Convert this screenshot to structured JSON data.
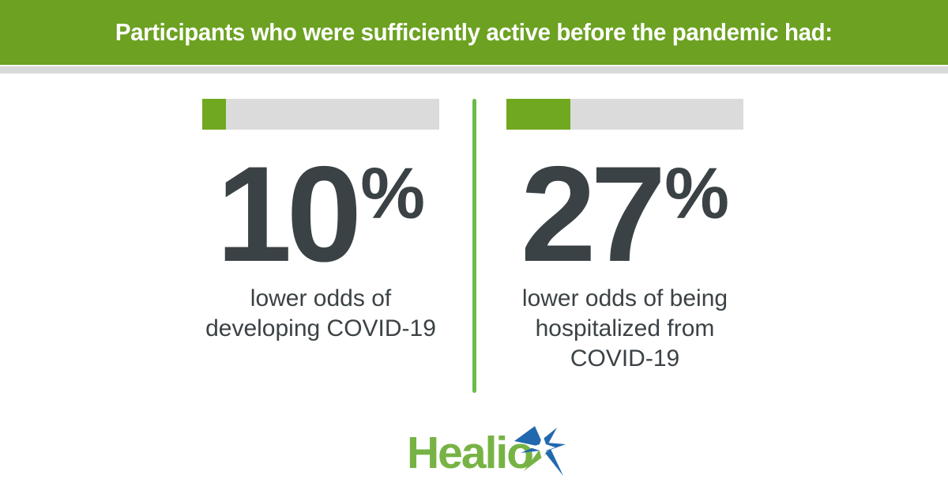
{
  "header": {
    "title": "Participants who were sufficiently active before the pandemic had:"
  },
  "stats": [
    {
      "value": "10",
      "unit": "%",
      "fill_percent": 10,
      "description_lines": [
        "lower odds of",
        "developing COVID-19"
      ]
    },
    {
      "value": "27",
      "unit": "%",
      "fill_percent": 27,
      "description_lines": [
        "lower odds of being",
        "hospitalized from",
        "COVID-19"
      ]
    }
  ],
  "footer": {
    "logo_text": "Healio",
    "logo_icon": "healio-starburst-icon"
  },
  "colors": {
    "header_green": "#6CA121",
    "bar_fill_green": "#70A81F",
    "bar_track_gray": "#DBDBDB",
    "header_strip_gray": "#D9D9D9",
    "divider_green": "#6CBA4A",
    "logo_green": "#76B344",
    "star_blue": "#2268AE",
    "text_dark": "#3B4245"
  },
  "chart_data": {
    "type": "bar",
    "title": "Participants who were sufficiently active before the pandemic had:",
    "categories": [
      "lower odds of developing COVID-19",
      "lower odds of being hospitalized from COVID-19"
    ],
    "values": [
      10,
      27
    ],
    "unit": "%",
    "xlim": [
      0,
      100
    ],
    "legend": "none",
    "grid": false
  }
}
